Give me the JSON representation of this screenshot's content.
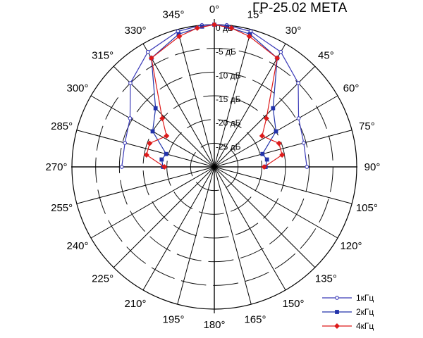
{
  "chart_data": {
    "type": "polar-line",
    "title": "ГР-25.02 МЕТА",
    "angle_ticks": [
      "0°",
      "15°",
      "30°",
      "45°",
      "60°",
      "75°",
      "90°",
      "105°",
      "120°",
      "135°",
      "150°",
      "165°",
      "180°",
      "195°",
      "210°",
      "225°",
      "240°",
      "255°",
      "270°",
      "285°",
      "300°",
      "315°",
      "330°",
      "345°"
    ],
    "radial_ticks": [
      {
        "value": 0,
        "label": "0 дБ"
      },
      {
        "value": -5,
        "label": "-5 дБ"
      },
      {
        "value": -10,
        "label": "-10 дБ"
      },
      {
        "value": -15,
        "label": "-15 дБ"
      },
      {
        "value": -20,
        "label": "-20 дБ"
      },
      {
        "value": -25,
        "label": "-25 дБ"
      }
    ],
    "radial_range": [
      -30,
      0
    ],
    "legend_position": "bottom-right",
    "series": [
      {
        "name": "1кГц",
        "color": "#3a3ab8",
        "marker": "circle",
        "angles": [
          270,
          285,
          300,
          315,
          330,
          345,
          355,
          0,
          5,
          15,
          30,
          45,
          60,
          75,
          90
        ],
        "values": [
          -10.5,
          -10.5,
          -9.5,
          -5,
          -2,
          -0.4,
          0,
          0,
          0,
          -0.4,
          -2,
          -5,
          -9.5,
          -10.5,
          -10.5
        ]
      },
      {
        "name": "2кГц",
        "color": "#2233aa",
        "marker": "square",
        "angles": [
          270,
          278,
          285,
          300,
          315,
          330,
          345,
          355,
          0,
          5,
          15,
          30,
          45,
          60,
          75,
          82,
          90
        ],
        "values": [
          -19.2,
          -18.8,
          -19.5,
          -15,
          -12.5,
          -3.5,
          -1,
          -0.3,
          0,
          -0.3,
          -1,
          -3.5,
          -12.5,
          -15,
          -19.5,
          -18.8,
          -19.2
        ]
      },
      {
        "name": "4кГц",
        "color": "#dd1a1a",
        "marker": "diamond",
        "angles": [
          270,
          280,
          290,
          303,
          313,
          330,
          345,
          353,
          0,
          7,
          15,
          30,
          47,
          57,
          70,
          80,
          90
        ],
        "values": [
          -19.5,
          -15.5,
          -15.5,
          -18,
          -15,
          -3.5,
          -1.5,
          -0.5,
          0,
          -0.5,
          -1.5,
          -3.5,
          -15,
          -18,
          -15.5,
          -15.5,
          -19.5
        ]
      }
    ]
  }
}
